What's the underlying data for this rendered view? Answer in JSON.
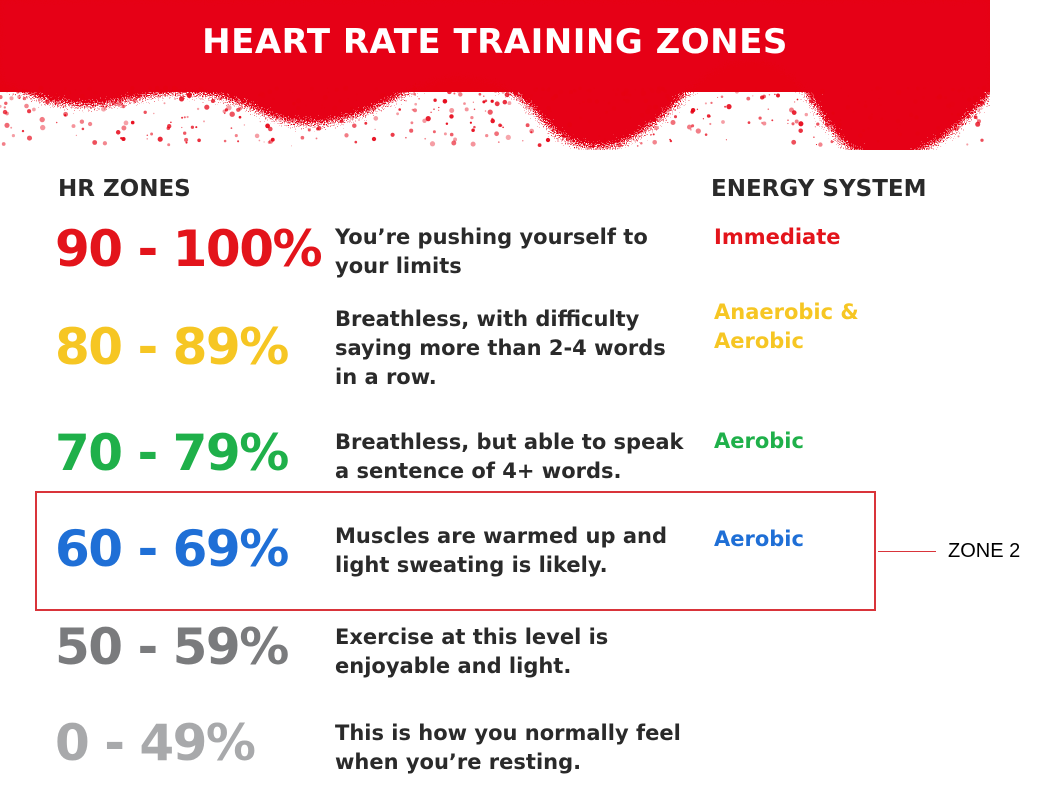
{
  "header": {
    "title": "HEART RATE TRAINING ZONES",
    "band_color": "#e60012"
  },
  "columns": {
    "zones": "HR ZONES",
    "energy": "ENERGY SYSTEM"
  },
  "zones": [
    {
      "range": "90 - 100%",
      "description": "You’re pushing yourself to your limits",
      "energy": "Immediate",
      "color": "#e3141b",
      "energy_color": "#e3141b"
    },
    {
      "range": "80 - 89%",
      "description": "Breathless, with difficulty saying more than 2-4 words in a row.",
      "energy": "Anaerobic & Aerobic",
      "color": "#f6c623",
      "energy_color": "#f6c623"
    },
    {
      "range": "70 - 79%",
      "description": "Breathless, but able to speak a sentence of 4+ words.",
      "energy": "Aerobic",
      "color": "#1fb04a",
      "energy_color": "#1fb04a"
    },
    {
      "range": "60 - 69%",
      "description": "Muscles are warmed up and light sweating is likely.",
      "energy": "Aerobic",
      "color": "#1f6fd6",
      "energy_color": "#1f6fd6"
    },
    {
      "range": "50 - 59%",
      "description": "Exercise at this level is enjoyable and light.",
      "energy": "",
      "color": "#7a7b7d",
      "energy_color": "#7a7b7d"
    },
    {
      "range": "0 - 49%",
      "description": "This is how you normally feel when you’re resting.",
      "energy": "",
      "color": "#a8a9ab",
      "energy_color": "#a8a9ab"
    }
  ],
  "annotation": {
    "label": "ZONE 2",
    "color": "#d9343a"
  }
}
